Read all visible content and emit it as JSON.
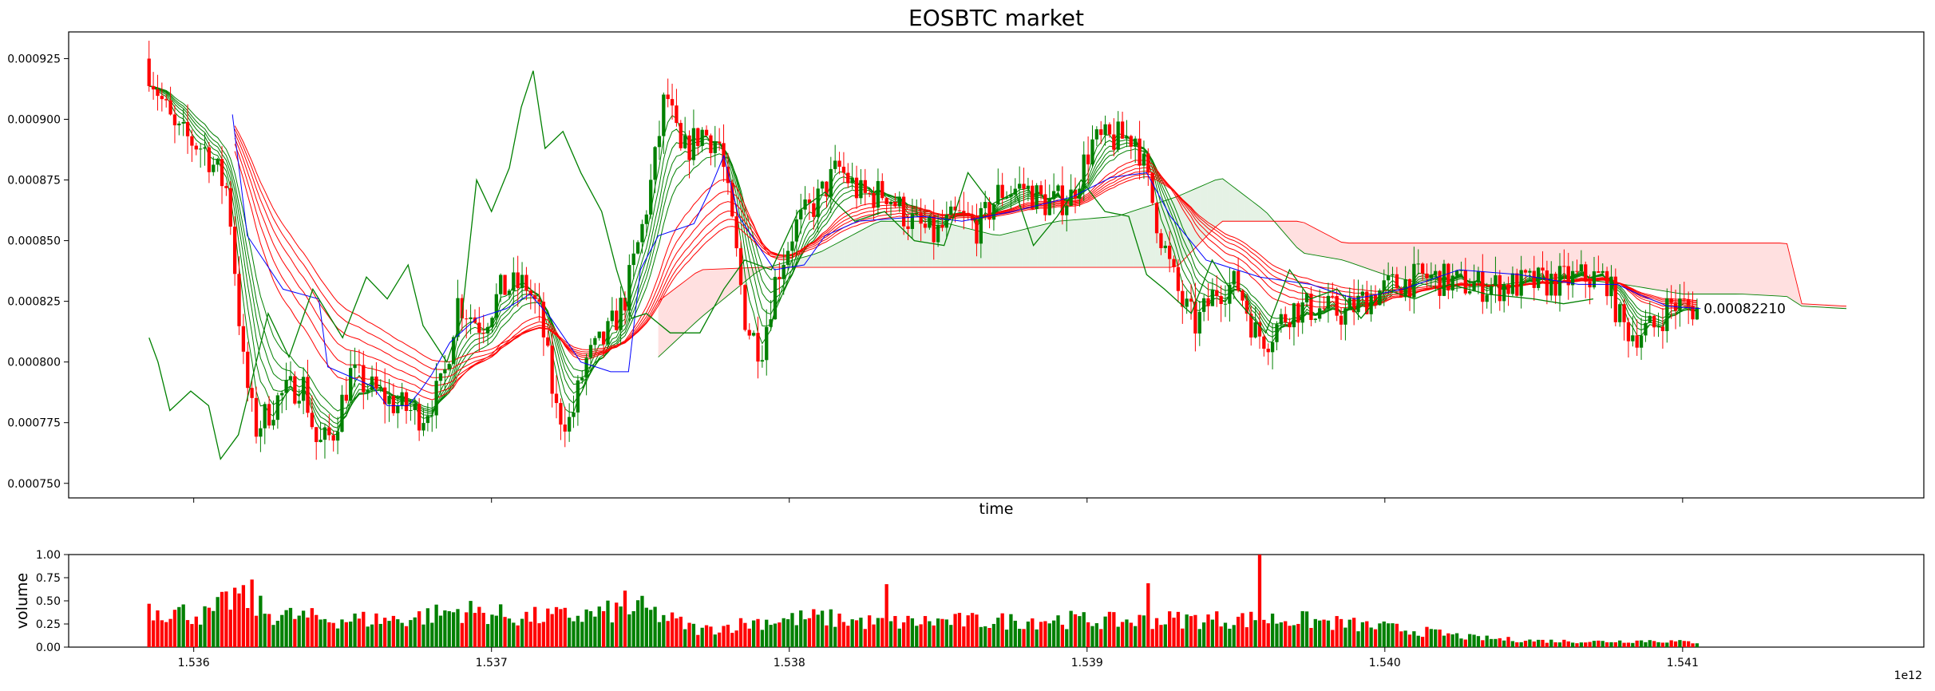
{
  "chart_data": [
    {
      "type": "candlestick",
      "title": "EOSBTC market",
      "xlabel": "time",
      "ylabel": "",
      "xlim": [
        1535580000000,
        1541810000000
      ],
      "ylim": [
        0.000744,
        0.000936
      ],
      "yticks": [
        "0.000750",
        "0.000775",
        "0.000800",
        "0.000825",
        "0.000850",
        "0.000875",
        "0.000900",
        "0.000925"
      ],
      "ytick_values": [
        0.00075,
        0.000775,
        0.0008,
        0.000825,
        0.00085,
        0.000875,
        0.0009,
        0.000925
      ],
      "xtick_values": [
        1536000000000,
        1537000000000,
        1538000000000,
        1539000000000,
        1540000000000,
        1541000000000
      ],
      "last_price_label": "0.00082210",
      "last_price": 0.0008221,
      "colors": {
        "up": "#008000",
        "down": "#ff0000",
        "ma_short": "#008000",
        "ma_long": "#ff0000",
        "baseline": "#0000ff",
        "cloud_bull": "#008000",
        "cloud_bear": "#ff0000"
      },
      "price_path": [
        [
          1535850000000,
          0.000925
        ],
        [
          1535950000000,
          0.000895
        ],
        [
          1536050000000,
          0.000888
        ],
        [
          1536130000000,
          0.00087
        ],
        [
          1536180000000,
          0.0008
        ],
        [
          1536220000000,
          0.000772
        ],
        [
          1536300000000,
          0.000785
        ],
        [
          1536380000000,
          0.000792
        ],
        [
          1536430000000,
          0.000765
        ],
        [
          1536480000000,
          0.00077
        ],
        [
          1536540000000,
          0.000795
        ],
        [
          1536620000000,
          0.000788
        ],
        [
          1536700000000,
          0.000782
        ],
        [
          1536780000000,
          0.000778
        ],
        [
          1536850000000,
          0.00079
        ],
        [
          1536900000000,
          0.000825
        ],
        [
          1536980000000,
          0.000815
        ],
        [
          1537050000000,
          0.00083
        ],
        [
          1537130000000,
          0.000832
        ],
        [
          1537180000000,
          0.000818
        ],
        [
          1537230000000,
          0.00078
        ],
        [
          1537280000000,
          0.000775
        ],
        [
          1537330000000,
          0.0008
        ],
        [
          1537400000000,
          0.00081
        ],
        [
          1537460000000,
          0.000825
        ],
        [
          1537520000000,
          0.000855
        ],
        [
          1537560000000,
          0.00088
        ],
        [
          1537600000000,
          0.000912
        ],
        [
          1537650000000,
          0.000885
        ],
        [
          1537720000000,
          0.000895
        ],
        [
          1537780000000,
          0.00089
        ],
        [
          1537830000000,
          0.00085
        ],
        [
          1537870000000,
          0.000815
        ],
        [
          1537920000000,
          0.000805
        ],
        [
          1537970000000,
          0.000835
        ],
        [
          1538030000000,
          0.000855
        ],
        [
          1538100000000,
          0.000865
        ],
        [
          1538180000000,
          0.00088
        ],
        [
          1538260000000,
          0.000868
        ],
        [
          1538340000000,
          0.00087
        ],
        [
          1538420000000,
          0.000858
        ],
        [
          1538500000000,
          0.000852
        ],
        [
          1538580000000,
          0.00086
        ],
        [
          1538650000000,
          0.000855
        ],
        [
          1538720000000,
          0.00087
        ],
        [
          1538800000000,
          0.000872
        ],
        [
          1538880000000,
          0.000865
        ],
        [
          1538960000000,
          0.000868
        ],
        [
          1539030000000,
          0.00089
        ],
        [
          1539110000000,
          0.000892
        ],
        [
          1539180000000,
          0.000893
        ],
        [
          1539250000000,
          0.000858
        ],
        [
          1539290000000,
          0.00084
        ],
        [
          1539330000000,
          0.000825
        ],
        [
          1539380000000,
          0.000815
        ],
        [
          1539450000000,
          0.00083
        ],
        [
          1539520000000,
          0.000832
        ],
        [
          1539580000000,
          0.000812
        ],
        [
          1539620000000,
          0.00081
        ],
        [
          1539700000000,
          0.000822
        ],
        [
          1539800000000,
          0.000822
        ],
        [
          1539880000000,
          0.00082
        ],
        [
          1539960000000,
          0.000827
        ],
        [
          1540050000000,
          0.000832
        ],
        [
          1540150000000,
          0.000835
        ],
        [
          1540250000000,
          0.000833
        ],
        [
          1540360000000,
          0.000831
        ],
        [
          1540470000000,
          0.000832
        ],
        [
          1540580000000,
          0.000833
        ],
        [
          1540680000000,
          0.000835
        ],
        [
          1540760000000,
          0.000834
        ],
        [
          1540810000000,
          0.000815
        ],
        [
          1540850000000,
          0.000812
        ],
        [
          1540920000000,
          0.000814
        ],
        [
          1540970000000,
          0.000824
        ],
        [
          1541060000000,
          0.0008221
        ]
      ],
      "baseline_path": [
        [
          1536130000000,
          0.000902
        ],
        [
          1536180000000,
          0.000852
        ],
        [
          1536300000000,
          0.00083
        ],
        [
          1536420000000,
          0.000826
        ],
        [
          1536450000000,
          0.000798
        ],
        [
          1536600000000,
          0.00079
        ],
        [
          1536650000000,
          0.000782
        ],
        [
          1536720000000,
          0.000782
        ],
        [
          1536760000000,
          0.000788
        ],
        [
          1536800000000,
          0.000795
        ],
        [
          1536860000000,
          0.000808
        ],
        [
          1536950000000,
          0.000818
        ],
        [
          1537050000000,
          0.000822
        ],
        [
          1537130000000,
          0.000828
        ],
        [
          1537200000000,
          0.000818
        ],
        [
          1537300000000,
          0.0008
        ],
        [
          1537400000000,
          0.000796
        ],
        [
          1537460000000,
          0.000796
        ],
        [
          1537500000000,
          0.000838
        ],
        [
          1537560000000,
          0.000852
        ],
        [
          1537680000000,
          0.000857
        ],
        [
          1537730000000,
          0.00087
        ],
        [
          1537780000000,
          0.000885
        ],
        [
          1537830000000,
          0.00086
        ],
        [
          1537950000000,
          0.000838
        ],
        [
          1538050000000,
          0.00084
        ],
        [
          1538120000000,
          0.000852
        ],
        [
          1538230000000,
          0.000858
        ],
        [
          1538450000000,
          0.00086
        ],
        [
          1538580000000,
          0.000858
        ],
        [
          1538750000000,
          0.000862
        ],
        [
          1538950000000,
          0.000868
        ],
        [
          1539080000000,
          0.000876
        ],
        [
          1539200000000,
          0.000878
        ],
        [
          1539280000000,
          0.00086
        ],
        [
          1539400000000,
          0.000842
        ],
        [
          1539580000000,
          0.000835
        ],
        [
          1539750000000,
          0.000832
        ],
        [
          1539900000000,
          0.000826
        ],
        [
          1540060000000,
          0.00083
        ],
        [
          1540250000000,
          0.000838
        ],
        [
          1540450000000,
          0.000836
        ],
        [
          1540650000000,
          0.000832
        ],
        [
          1540780000000,
          0.000832
        ],
        [
          1540850000000,
          0.000828
        ],
        [
          1540950000000,
          0.000823
        ],
        [
          1541060000000,
          0.000822
        ]
      ],
      "lagging_span": [
        [
          1535850000000,
          0.00081
        ],
        [
          1535880000000,
          0.0008
        ],
        [
          1535920000000,
          0.00078
        ],
        [
          1535990000000,
          0.000788
        ],
        [
          1536050000000,
          0.000782
        ],
        [
          1536090000000,
          0.00076
        ],
        [
          1536150000000,
          0.00077
        ],
        [
          1536200000000,
          0.000795
        ],
        [
          1536250000000,
          0.00082
        ],
        [
          1536320000000,
          0.000802
        ],
        [
          1536400000000,
          0.00083
        ],
        [
          1536500000000,
          0.00081
        ],
        [
          1536580000000,
          0.000835
        ],
        [
          1536650000000,
          0.000826
        ],
        [
          1536720000000,
          0.00084
        ],
        [
          1536770000000,
          0.000815
        ],
        [
          1536850000000,
          0.0008
        ],
        [
          1536900000000,
          0.000818
        ],
        [
          1536950000000,
          0.000875
        ],
        [
          1537000000000,
          0.000862
        ],
        [
          1537060000000,
          0.00088
        ],
        [
          1537100000000,
          0.000905
        ],
        [
          1537140000000,
          0.00092
        ],
        [
          1537180000000,
          0.000888
        ],
        [
          1537240000000,
          0.000895
        ],
        [
          1537300000000,
          0.000878
        ],
        [
          1537370000000,
          0.000862
        ],
        [
          1537420000000,
          0.000838
        ],
        [
          1537470000000,
          0.000818
        ],
        [
          1537520000000,
          0.00082
        ],
        [
          1537600000000,
          0.000812
        ],
        [
          1537700000000,
          0.000812
        ],
        [
          1537780000000,
          0.00083
        ],
        [
          1537850000000,
          0.000842
        ],
        [
          1537940000000,
          0.000838
        ],
        [
          1538030000000,
          0.000862
        ],
        [
          1538120000000,
          0.00087
        ],
        [
          1538220000000,
          0.000858
        ],
        [
          1538320000000,
          0.000862
        ],
        [
          1538420000000,
          0.00085
        ],
        [
          1538520000000,
          0.000848
        ],
        [
          1538600000000,
          0.000878
        ],
        [
          1538680000000,
          0.000865
        ],
        [
          1538760000000,
          0.00087
        ],
        [
          1538820000000,
          0.000848
        ],
        [
          1538900000000,
          0.00086
        ],
        [
          1538980000000,
          0.000875
        ],
        [
          1539060000000,
          0.000862
        ],
        [
          1539140000000,
          0.00086
        ],
        [
          1539200000000,
          0.000836
        ],
        [
          1539260000000,
          0.00083
        ],
        [
          1539350000000,
          0.00082
        ],
        [
          1539420000000,
          0.000842
        ],
        [
          1539500000000,
          0.000826
        ],
        [
          1539600000000,
          0.000812
        ],
        [
          1539680000000,
          0.000838
        ],
        [
          1539750000000,
          0.000826
        ],
        [
          1539840000000,
          0.00083
        ],
        [
          1539920000000,
          0.000818
        ],
        [
          1540000000000,
          0.00083
        ],
        [
          1540100000000,
          0.000826
        ],
        [
          1540220000000,
          0.000832
        ],
        [
          1540340000000,
          0.000828
        ],
        [
          1540500000000,
          0.000826
        ],
        [
          1540600000000,
          0.000824
        ],
        [
          1540700000000,
          0.000826
        ]
      ],
      "cloud": {
        "x": [
          1537560000000,
          1537700000000,
          1537900000000,
          1538100000000,
          1538300000000,
          1538500000000,
          1538700000000,
          1538900000000,
          1539100000000,
          1539300000000,
          1539450000000,
          1539600000000,
          1539720000000,
          1539860000000,
          1540000000000,
          1540200000000,
          1540400000000,
          1540600000000,
          1540800000000,
          1541000000000,
          1541200000000,
          1541350000000,
          1541400000000,
          1541550000000
        ],
        "span_a": [
          0.000802,
          0.000818,
          0.000838,
          0.000845,
          0.000858,
          0.000858,
          0.000852,
          0.000858,
          0.00086,
          0.000868,
          0.000876,
          0.000862,
          0.000845,
          0.000842,
          0.000836,
          0.00083,
          0.000832,
          0.000835,
          0.000832,
          0.000828,
          0.000828,
          0.000827,
          0.000823,
          0.000822
        ],
        "span_b": [
          0.000825,
          0.000838,
          0.000839,
          0.000839,
          0.000839,
          0.000839,
          0.000839,
          0.000839,
          0.000839,
          0.000839,
          0.000858,
          0.000858,
          0.000858,
          0.000849,
          0.000849,
          0.000849,
          0.000849,
          0.000849,
          0.000849,
          0.000849,
          0.000849,
          0.000849,
          0.000824,
          0.000823
        ]
      },
      "candles": {
        "start": 1535850000000,
        "interval_ms": 14400000,
        "ohlc": [],
        "note": "candles drawn from price_path"
      }
    },
    {
      "type": "bar",
      "ylabel": "volume",
      "xlabel": "",
      "xlim": [
        1535580000000,
        1541810000000
      ],
      "ylim": [
        0,
        1
      ],
      "yticks": [
        "0.00",
        "0.25",
        "0.50",
        "0.75",
        "1.00"
      ],
      "ytick_values": [
        0,
        0.25,
        0.5,
        0.75,
        1.0
      ],
      "xticks": [
        "1.536",
        "1.537",
        "1.538",
        "1.539",
        "1.540",
        "1.541"
      ],
      "xtick_values": [
        1536000000000,
        1537000000000,
        1538000000000,
        1539000000000,
        1540000000000,
        1541000000000
      ],
      "offset_label": "1e12",
      "volume_profile": [
        [
          1535850000000,
          0.42
        ],
        [
          1536050000000,
          0.34
        ],
        [
          1536150000000,
          0.58
        ],
        [
          1536250000000,
          0.36
        ],
        [
          1536450000000,
          0.3
        ],
        [
          1536700000000,
          0.3
        ],
        [
          1536900000000,
          0.4
        ],
        [
          1537100000000,
          0.32
        ],
        [
          1537300000000,
          0.34
        ],
        [
          1537500000000,
          0.42
        ],
        [
          1537700000000,
          0.18
        ],
        [
          1537900000000,
          0.28
        ],
        [
          1538100000000,
          0.32
        ],
        [
          1538300000000,
          0.26
        ],
        [
          1538500000000,
          0.28
        ],
        [
          1538700000000,
          0.28
        ],
        [
          1538900000000,
          0.3
        ],
        [
          1539100000000,
          0.28
        ],
        [
          1539300000000,
          0.3
        ],
        [
          1539500000000,
          0.3
        ],
        [
          1539700000000,
          0.3
        ],
        [
          1539900000000,
          0.24
        ],
        [
          1540100000000,
          0.18
        ],
        [
          1540300000000,
          0.1
        ],
        [
          1540500000000,
          0.07
        ],
        [
          1540700000000,
          0.06
        ],
        [
          1540900000000,
          0.07
        ],
        [
          1541060000000,
          0.05
        ]
      ],
      "spikes": [
        [
          1536160000000,
          0.67
        ],
        [
          1536200000000,
          0.73
        ],
        [
          1538330000000,
          0.68
        ],
        [
          1539210000000,
          0.69
        ],
        [
          1539580000000,
          1.0
        ],
        [
          1537450000000,
          0.61
        ]
      ]
    }
  ]
}
